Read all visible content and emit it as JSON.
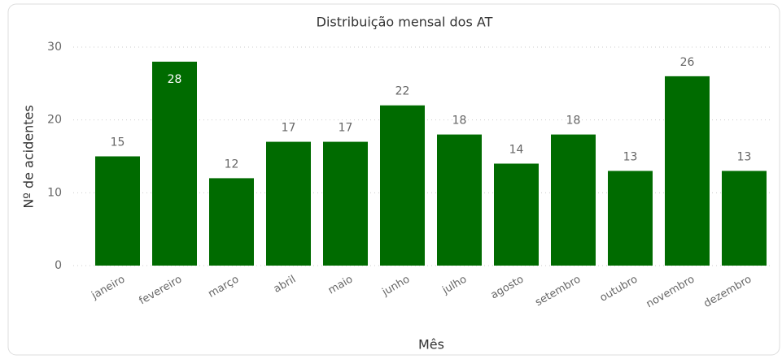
{
  "chart_data": {
    "type": "bar",
    "title": "Distribuição mensal dos AT",
    "x_label": "Mês",
    "y_label": "Nº de acidentes",
    "categories": [
      "janeiro",
      "fevereiro",
      "março",
      "abril",
      "maio",
      "junho",
      "julho",
      "agosto",
      "setembro",
      "outubro",
      "novembro",
      "dezembro"
    ],
    "values": [
      15,
      28,
      12,
      17,
      17,
      22,
      18,
      14,
      18,
      13,
      26,
      13
    ],
    "color": "#006b00",
    "ylim": [
      0,
      30
    ],
    "yticks": [
      0,
      10,
      20,
      30
    ],
    "grid": true
  }
}
